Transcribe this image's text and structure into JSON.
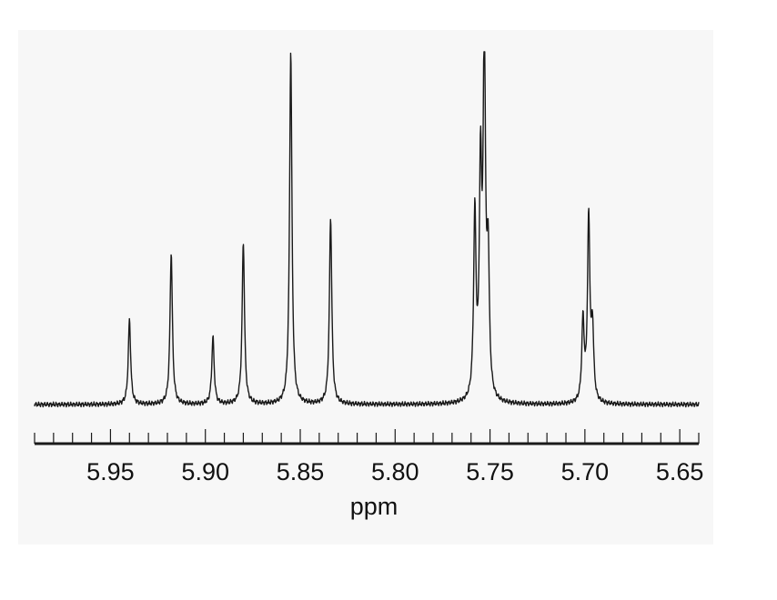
{
  "chart_data": {
    "type": "line",
    "title": "",
    "xlabel": "ppm",
    "ylabel": "",
    "xlim": [
      5.99,
      5.64
    ],
    "ylim": [
      -0.02,
      1.0
    ],
    "x_reversed": true,
    "grid": false,
    "legend": "none",
    "xticks": [
      "5.95",
      "5.90",
      "5.85",
      "5.80",
      "5.75",
      "5.70",
      "5.65"
    ],
    "x_tick_values": [
      5.95,
      5.9,
      5.85,
      5.8,
      5.75,
      5.7,
      5.65
    ],
    "minor_tick_step": 0.01,
    "baseline": 0.0,
    "peaks": [
      {
        "x": 5.94,
        "y": 0.24
      },
      {
        "x": 5.918,
        "y": 0.43
      },
      {
        "x": 5.896,
        "y": 0.19
      },
      {
        "x": 5.88,
        "y": 0.46
      },
      {
        "x": 5.855,
        "y": 1.0
      },
      {
        "x": 5.834,
        "y": 0.53
      },
      {
        "x": 5.758,
        "y": 0.52
      },
      {
        "x": 5.755,
        "y": 0.62
      },
      {
        "x": 5.753,
        "y": 1.0
      },
      {
        "x": 5.751,
        "y": 0.38
      },
      {
        "x": 5.701,
        "y": 0.23
      },
      {
        "x": 5.698,
        "y": 0.52
      },
      {
        "x": 5.696,
        "y": 0.2
      }
    ],
    "colors": {
      "trace": "#1a1a1a",
      "axis": "#1a1a1a",
      "background": "#f7f7f7"
    }
  }
}
